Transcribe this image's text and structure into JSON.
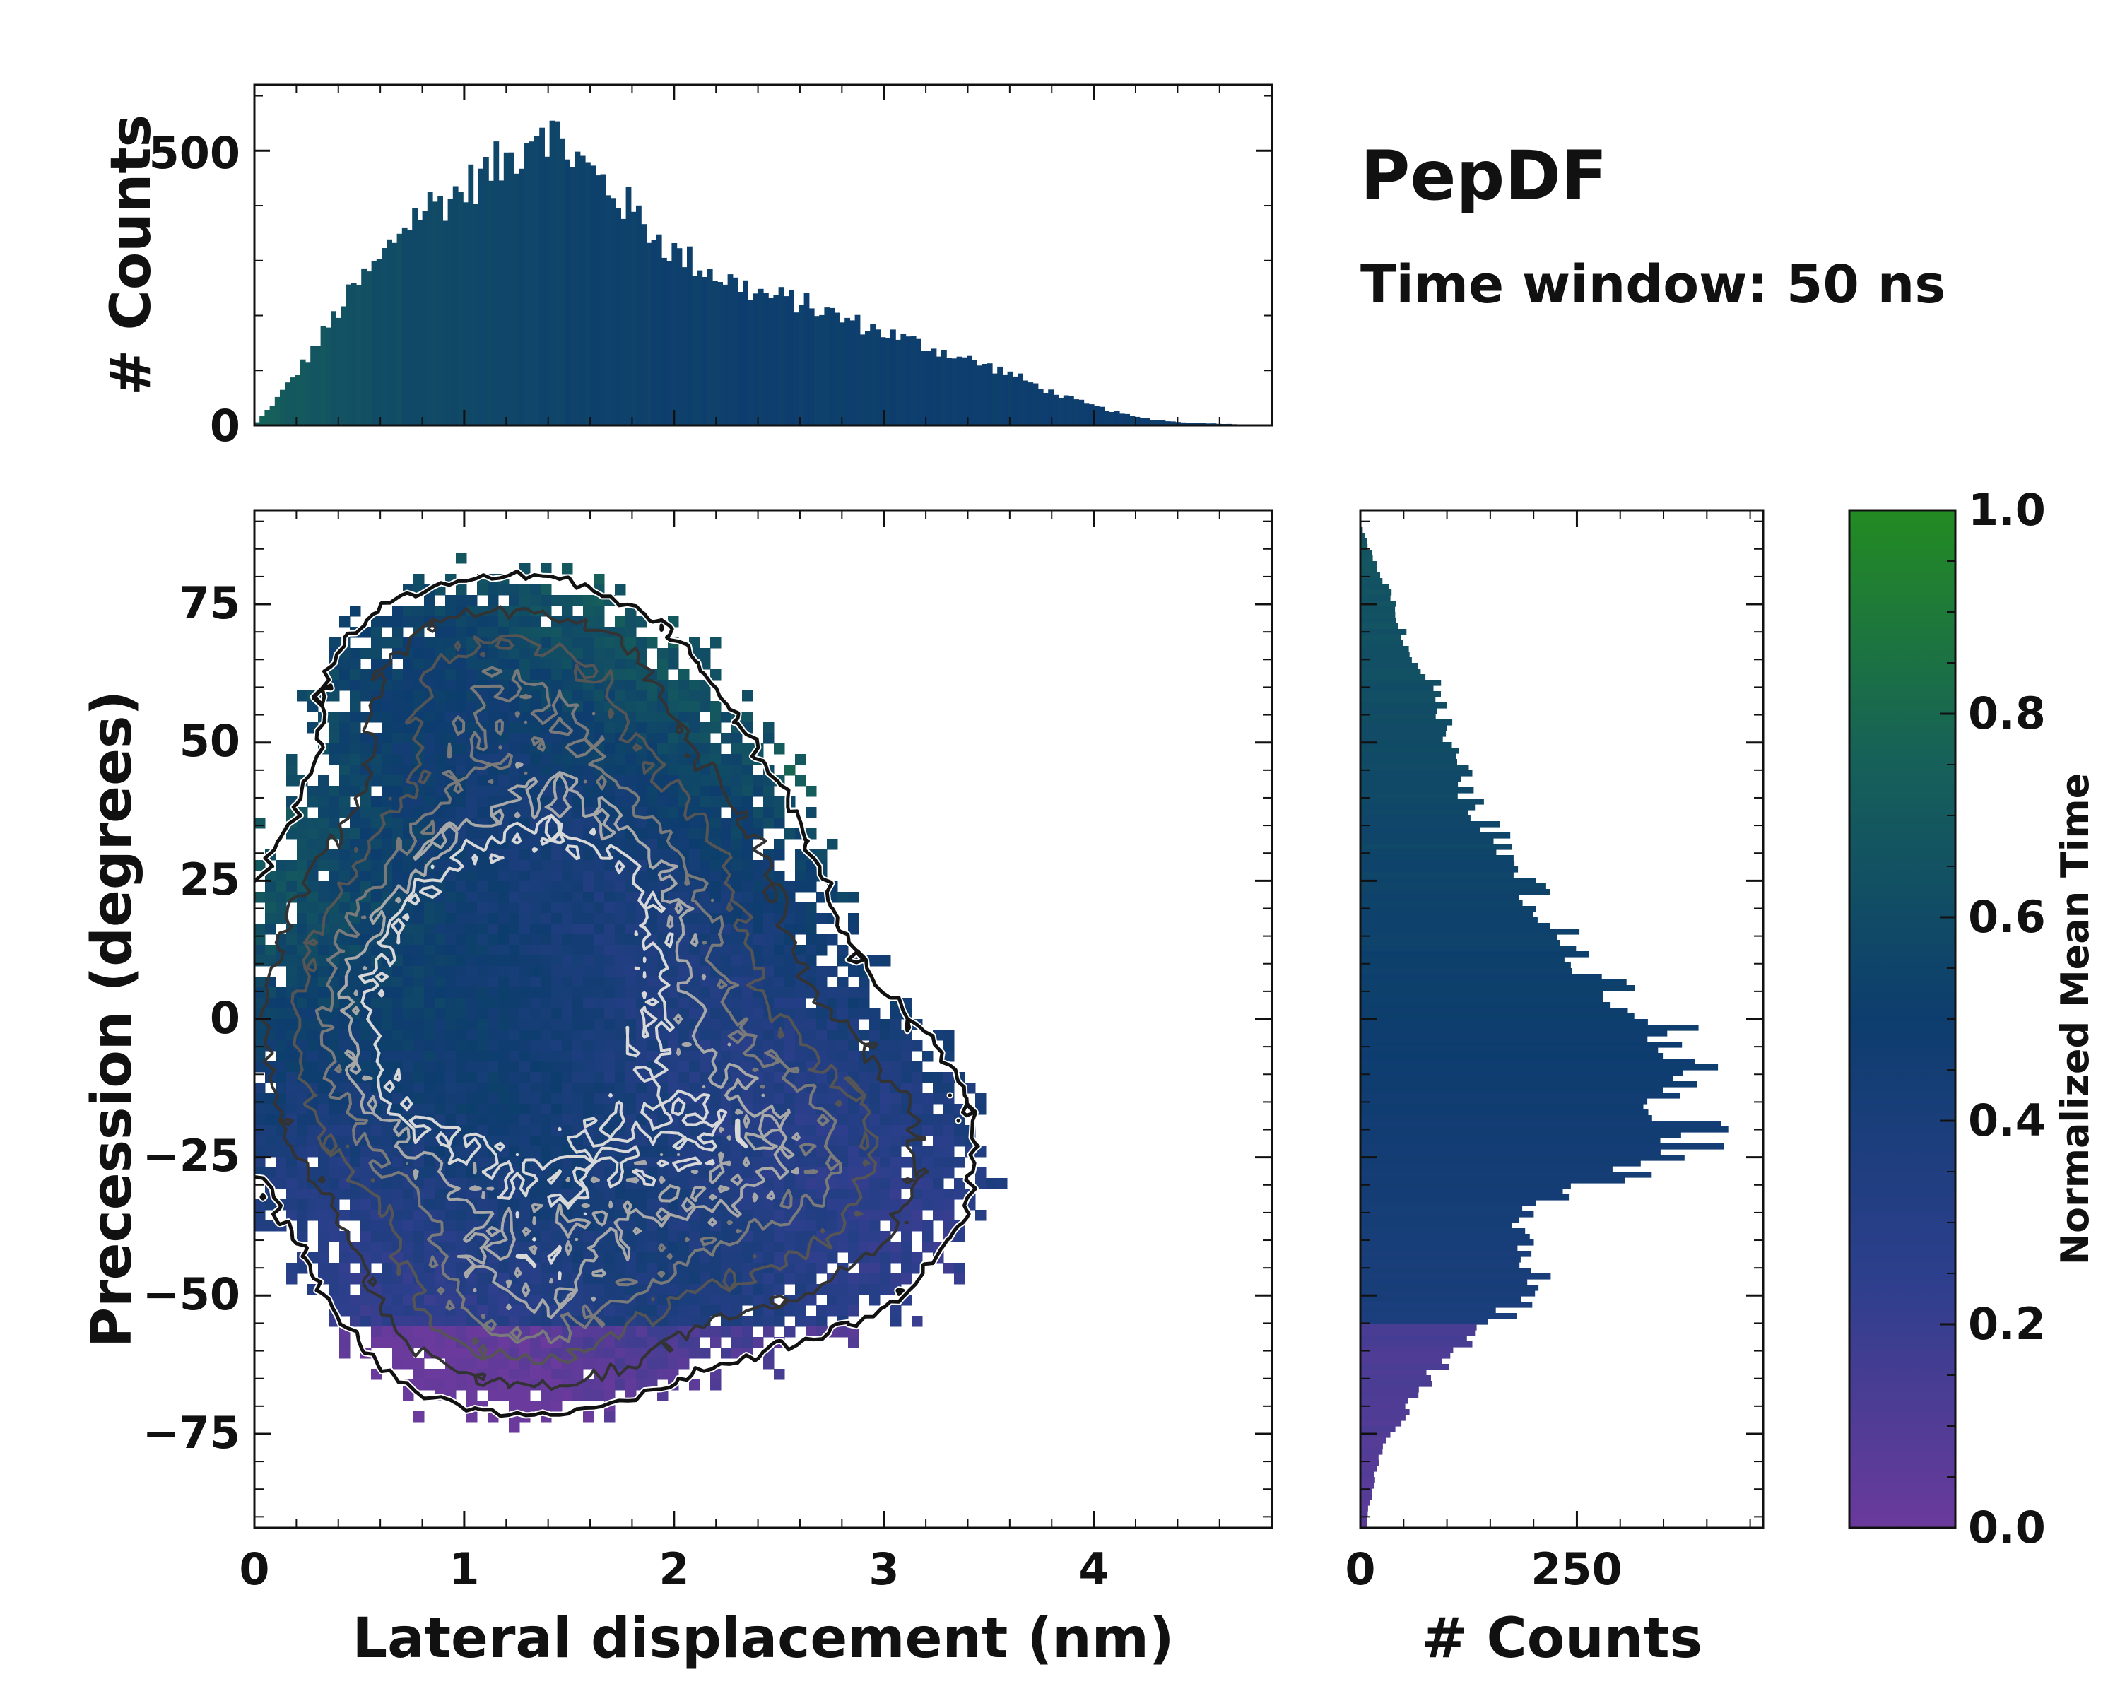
{
  "title": "PepDF",
  "subtitle": "Time window: 50 ns",
  "colors": {
    "low": "#6a3a9c",
    "mid": "#0d3d6e",
    "high": "#238b22",
    "axis": "#111111",
    "contour_dark": "#1a1a1a",
    "contour_light": "#d8d8d8"
  },
  "chart_data": [
    {
      "id": "main-2d-histogram",
      "type": "heatmap",
      "xlabel": "Lateral displacement (nm)",
      "ylabel": "Precession (degrees)",
      "xlim": [
        0,
        4.85
      ],
      "ylim": [
        -92,
        92
      ],
      "xticks": [
        0,
        1,
        2,
        3,
        4
      ],
      "xtick_labels": [
        "0",
        "1",
        "2",
        "3",
        "4"
      ],
      "yticks": [
        -75,
        -50,
        -25,
        0,
        25,
        50,
        75
      ],
      "ytick_labels": [
        "−75",
        "−50",
        "−25",
        "0",
        "25",
        "50",
        "75"
      ],
      "color_variable": "Normalized Mean Time",
      "density_peaks": [
        {
          "x": 1.0,
          "y": -5,
          "sx": 0.55,
          "sy": 22,
          "w": 1.0
        },
        {
          "x": 1.5,
          "y": 20,
          "sx": 0.6,
          "sy": 20,
          "w": 0.85
        },
        {
          "x": 2.3,
          "y": -25,
          "sx": 0.6,
          "sy": 18,
          "w": 0.7
        },
        {
          "x": 1.3,
          "y": -50,
          "sx": 0.45,
          "sy": 12,
          "w": 0.55
        },
        {
          "x": 1.2,
          "y": 60,
          "sx": 0.5,
          "sy": 12,
          "w": 0.45
        }
      ]
    },
    {
      "id": "top-marginal-histogram",
      "type": "bar",
      "ylabel": "# Counts",
      "xlim": [
        0,
        4.85
      ],
      "ylim": [
        0,
        620
      ],
      "yticks": [
        0,
        500
      ],
      "ytick_labels": [
        "0",
        "500"
      ],
      "x": [
        0.0,
        0.1,
        0.2,
        0.3,
        0.4,
        0.5,
        0.6,
        0.7,
        0.8,
        0.9,
        1.0,
        1.1,
        1.2,
        1.3,
        1.35,
        1.4,
        1.5,
        1.6,
        1.7,
        1.8,
        1.9,
        2.0,
        2.2,
        2.4,
        2.6,
        2.8,
        3.0,
        3.2,
        3.4,
        3.6,
        3.8,
        4.0,
        4.2,
        4.4,
        4.6,
        4.8
      ],
      "values": [
        0,
        45,
        95,
        150,
        210,
        260,
        300,
        360,
        395,
        410,
        430,
        460,
        480,
        520,
        560,
        540,
        500,
        460,
        430,
        390,
        350,
        315,
        275,
        240,
        225,
        195,
        170,
        145,
        120,
        95,
        60,
        35,
        15,
        6,
        3,
        1
      ]
    },
    {
      "id": "right-marginal-histogram",
      "type": "bar",
      "orientation": "horizontal",
      "xlabel": "# Counts",
      "xlim": [
        0,
        465
      ],
      "xticks": [
        0,
        250
      ],
      "xtick_labels": [
        "0",
        "250"
      ],
      "y": [
        -90,
        -80,
        -75,
        -70,
        -65,
        -60,
        -55,
        -50,
        -45,
        -40,
        -35,
        -30,
        -25,
        -20,
        -15,
        -10,
        -5,
        0,
        5,
        10,
        15,
        20,
        25,
        30,
        35,
        40,
        45,
        50,
        55,
        60,
        65,
        70,
        75,
        80,
        85,
        90
      ],
      "values": [
        8,
        20,
        35,
        55,
        80,
        110,
        150,
        195,
        200,
        190,
        205,
        250,
        385,
        395,
        360,
        380,
        370,
        350,
        300,
        270,
        230,
        210,
        190,
        165,
        150,
        125,
        115,
        100,
        95,
        90,
        60,
        50,
        40,
        25,
        10,
        0
      ]
    },
    {
      "id": "colorbar",
      "type": "colorbar",
      "label": "Normalized Mean Time",
      "range": [
        0,
        1
      ],
      "ticks": [
        0.0,
        0.2,
        0.4,
        0.6,
        0.8,
        1.0
      ],
      "tick_labels": [
        "0.0",
        "0.2",
        "0.4",
        "0.6",
        "0.8",
        "1.0"
      ]
    }
  ]
}
